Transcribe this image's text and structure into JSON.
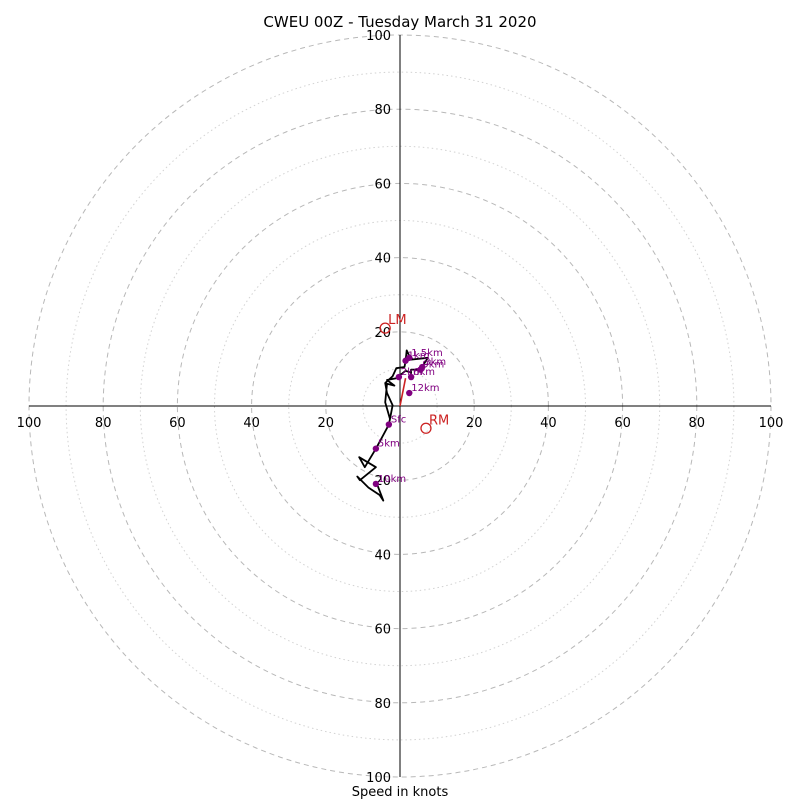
{
  "chart_data": {
    "type": "scatter",
    "title": "CWEU 00Z - Tuesday March 31 2020",
    "xlabel": "Speed in knots",
    "ylabel": "",
    "xlim": [
      -100,
      100
    ],
    "ylim": [
      -100,
      100
    ],
    "grid": "concentric rings every 10 knots, dashed at 20 knot multiples, dotted between",
    "rings": [
      10,
      20,
      30,
      40,
      50,
      60,
      70,
      80,
      90,
      100
    ],
    "x_tick_labels": [
      "100",
      "80",
      "60",
      "40",
      "20",
      "20",
      "40",
      "60",
      "80",
      "100"
    ],
    "x_tick_values": [
      -100,
      -80,
      -60,
      -40,
      -20,
      20,
      40,
      60,
      80,
      100
    ],
    "y_tick_labels": [
      "100",
      "80",
      "60",
      "40",
      "20",
      "20",
      "40",
      "60",
      "80",
      "100"
    ],
    "y_tick_values": [
      100,
      80,
      60,
      40,
      20,
      -20,
      -40,
      -60,
      -80,
      -100
    ],
    "hodograph_trace": {
      "color": "#000000",
      "points": [
        [
          -2.7,
          -3.5
        ],
        [
          -4.0,
          1.0
        ],
        [
          -3.5,
          6.0
        ],
        [
          -1.5,
          5.5
        ],
        [
          -3.5,
          7.0
        ],
        [
          -1.0,
          7.5
        ],
        [
          1.5,
          9.5
        ],
        [
          3.0,
          9.0
        ],
        [
          2.8,
          7.5
        ],
        [
          3.0,
          9.8
        ],
        [
          5.5,
          9.8
        ],
        [
          7.5,
          13.0
        ],
        [
          3.0,
          12.5
        ],
        [
          1.8,
          15.0
        ],
        [
          1.5,
          12.2
        ],
        [
          1.2,
          10.5
        ],
        [
          -1.0,
          10.2
        ],
        [
          -2.0,
          8.0
        ],
        [
          -4.0,
          6.2
        ],
        [
          -3.5,
          3.5
        ],
        [
          -2.0,
          0.2
        ],
        [
          -3.0,
          -5.0
        ],
        [
          -6.5,
          -11.5
        ],
        [
          -9.5,
          -16.5
        ],
        [
          -11.0,
          -13.8
        ],
        [
          -6.5,
          -16.5
        ],
        [
          -10.8,
          -20.0
        ],
        [
          -11.5,
          -19.0
        ],
        [
          -8.5,
          -22.0
        ],
        [
          -5.5,
          -24.0
        ],
        [
          -4.5,
          -25.5
        ],
        [
          -6.0,
          -21.5
        ],
        [
          -6.8,
          -21.0
        ]
      ]
    },
    "levels": {
      "color": "#800080",
      "points": [
        {
          "label": "Sfc",
          "x": -3.0,
          "y": -5.0
        },
        {
          "label": "12km",
          "x": 2.5,
          "y": 3.5
        },
        {
          "label": "9km",
          "x": 5.5,
          "y": 9.8
        },
        {
          "label": "3km",
          "x": 6.0,
          "y": 10.5
        },
        {
          "label": "1.5km",
          "x": 2.5,
          "y": 13.0
        },
        {
          "label": "1km",
          "x": 1.5,
          "y": 12.2
        },
        {
          "label": "6km",
          "x": 3.0,
          "y": 7.8
        },
        {
          "label": "2km",
          "x": -0.3,
          "y": 7.8
        },
        {
          "label": "5km",
          "x": -6.5,
          "y": -11.5
        },
        {
          "label": "10km",
          "x": -6.5,
          "y": -21.0
        }
      ]
    },
    "storm_motion": {
      "color": "#cc2222",
      "line": [
        [
          0,
          0
        ],
        [
          1.5,
          7.5
        ]
      ],
      "points": [
        {
          "label": "LM",
          "x": -4.0,
          "y": 21.0
        },
        {
          "label": "RM",
          "x": 7.0,
          "y": -6.0
        }
      ]
    }
  }
}
